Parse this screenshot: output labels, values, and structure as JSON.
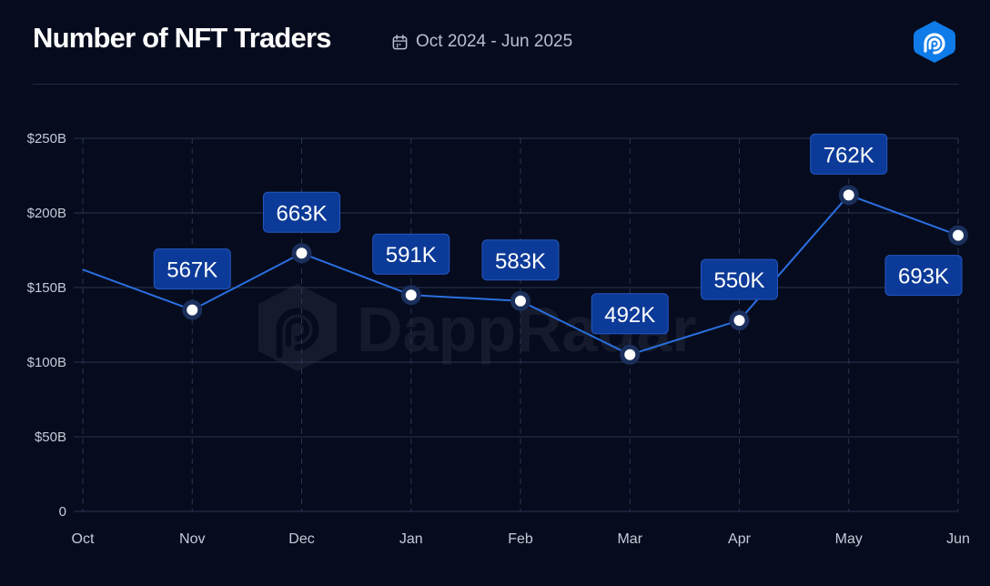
{
  "header": {
    "title": "Number of NFT Traders",
    "date_range": "Oct 2024 - Jun 2025",
    "calendar_icon": "calendar-icon",
    "logo_icon": "dappradar-logo-icon"
  },
  "watermark": {
    "text": "DappRadar"
  },
  "colors": {
    "background": "#060c1e",
    "line": "#2a6fe0",
    "label_bg": "#0c3a98",
    "label_border": "#2456c0",
    "grid": "#2a3550",
    "axis_text": "#c4cad6"
  },
  "chart_data": {
    "type": "line",
    "title": "Number of NFT Traders",
    "categories": [
      "Oct",
      "Nov",
      "Dec",
      "Jan",
      "Feb",
      "Mar",
      "Apr",
      "May",
      "Jun"
    ],
    "y_ticks": [
      "0",
      "$50B",
      "$100B",
      "$150B",
      "$200B",
      "$250B"
    ],
    "ylim": [
      0,
      250
    ],
    "grid": true,
    "series": [
      {
        "values": [
          162,
          135,
          173,
          145,
          141,
          105,
          128,
          212,
          185
        ],
        "data_labels": [
          null,
          "567K",
          "663K",
          "591K",
          "583K",
          "492K",
          "550K",
          "762K",
          "693K"
        ]
      }
    ]
  }
}
